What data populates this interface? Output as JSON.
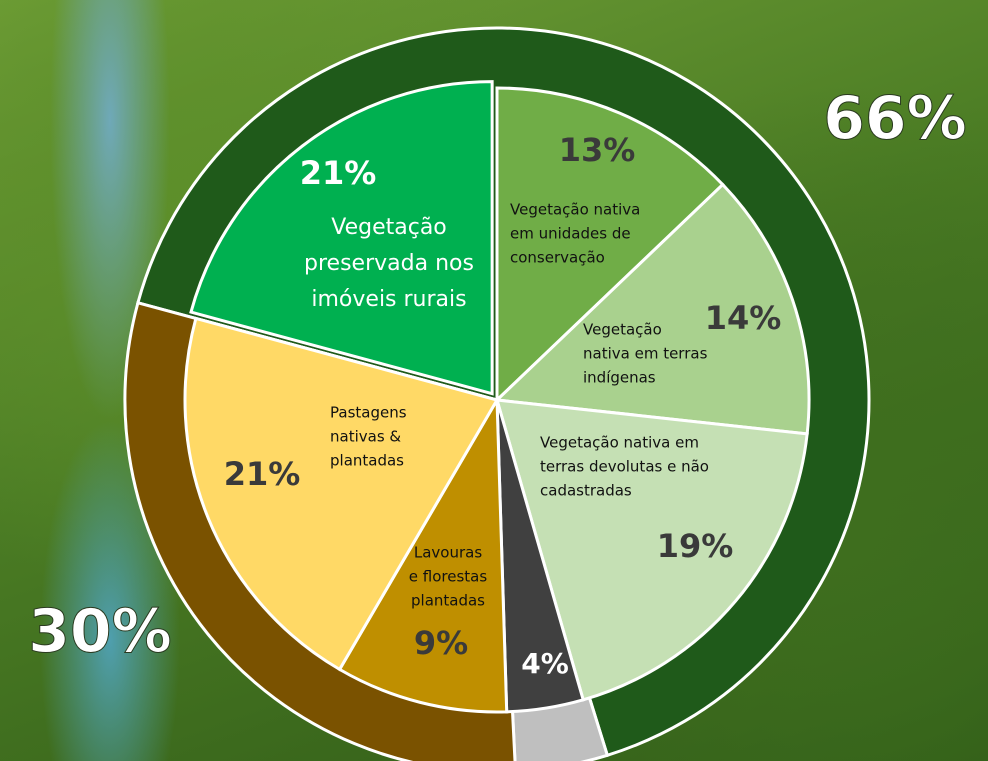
{
  "chart_data": {
    "type": "pie",
    "slices": {
      "values": [
        13,
        14,
        19,
        4,
        9,
        21,
        21
      ],
      "value_labels": [
        "13%",
        "14%",
        "19%",
        "4%",
        "9%",
        "21%",
        "21%"
      ],
      "labels": [
        [
          "Vegetação nativa",
          "em unidades de",
          "conservação"
        ],
        [
          "Vegetação",
          "nativa em terras",
          "indígenas"
        ],
        [
          "Vegetação nativa em",
          "terras devolutas e não",
          "cadastradas"
        ],
        null,
        [
          "Lavouras",
          "e florestas",
          "plantadas"
        ],
        [
          "Pastagens",
          "nativas &",
          "plantadas"
        ],
        [
          "Vegetação",
          "preservada nos",
          "imóveis rurais"
        ]
      ],
      "colors": [
        "#70ad47",
        "#a9d18e",
        "#c5e0b4",
        "#404040",
        "#bf8f00",
        "#ffd966",
        "#00b050"
      ]
    },
    "ring": {
      "values": [
        66,
        4,
        30
      ],
      "value_labels": [
        "66%",
        null,
        "30%"
      ],
      "colors": [
        "#1f5a1a",
        "#bfbfbf",
        "#7a5200"
      ]
    }
  }
}
